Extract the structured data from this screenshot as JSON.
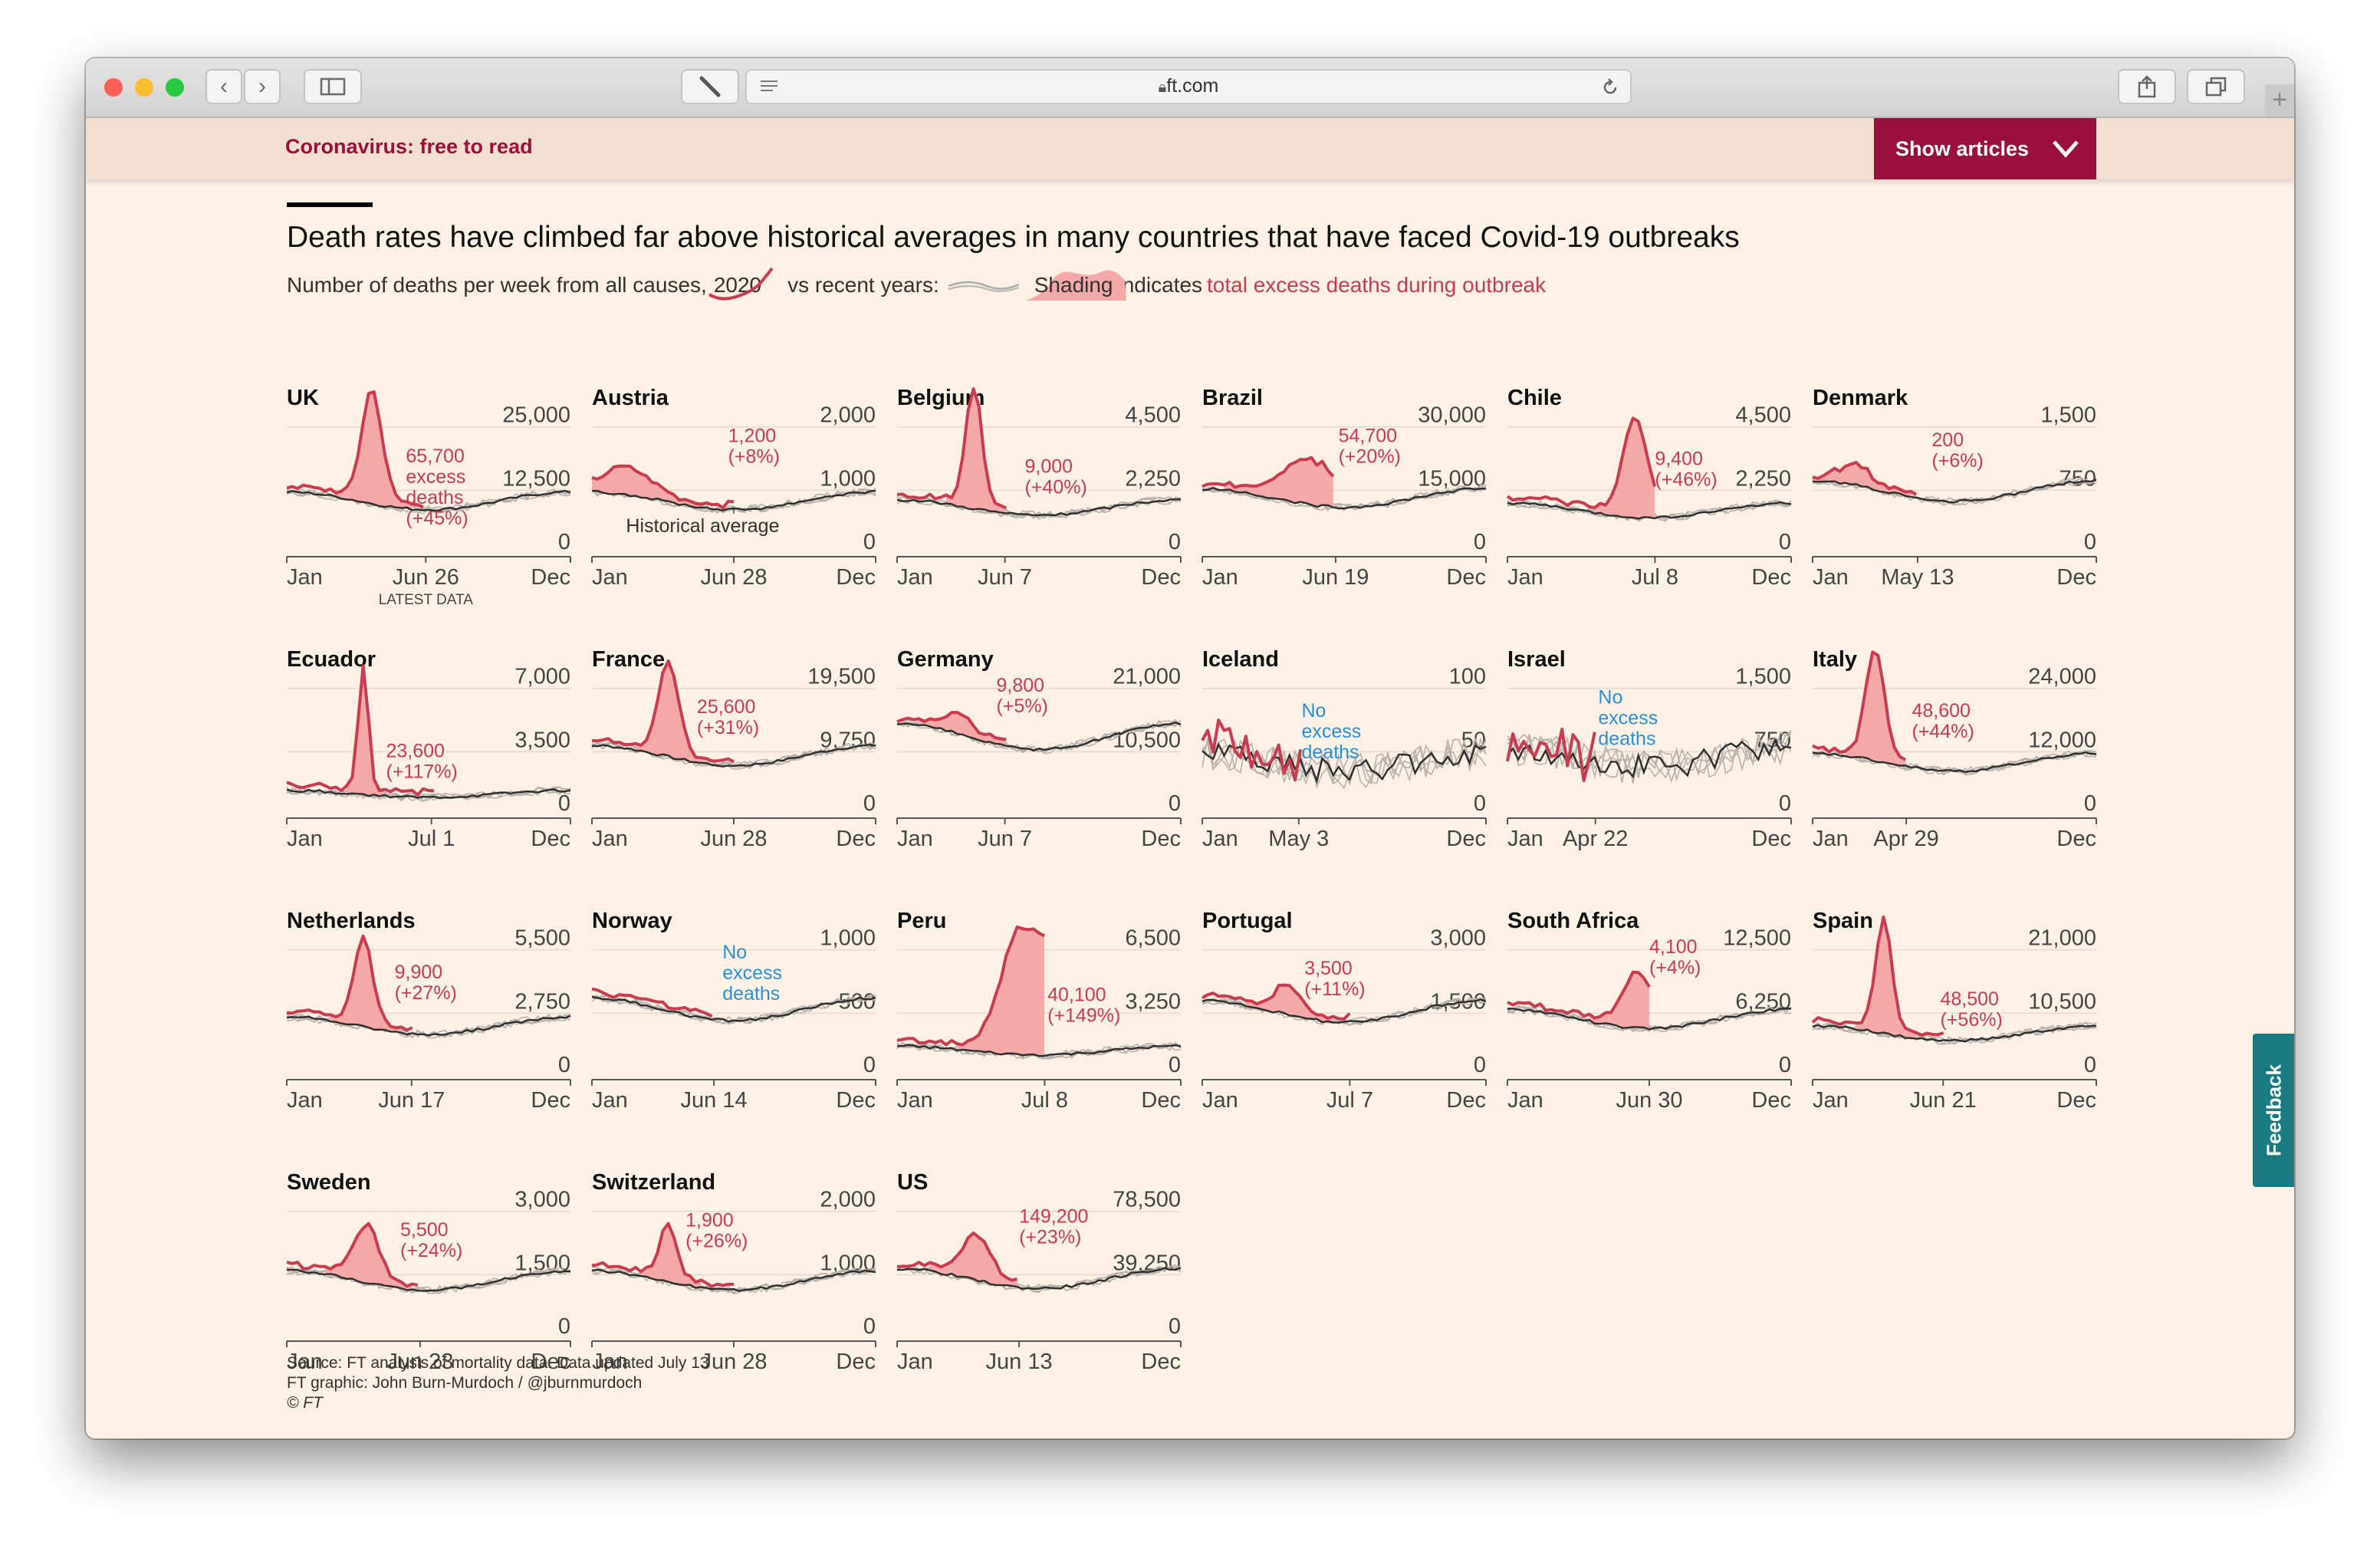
{
  "browser": {
    "url": "ft.com",
    "traffic_lights": [
      "#ff5f57",
      "#febc2e",
      "#28c840"
    ]
  },
  "banner": {
    "text": "Coronavirus: free to read",
    "button_label": "Show articles",
    "color": "#990f3d"
  },
  "header": {
    "title": "Death rates have climbed far above historical averages in many countries that have faced Covid-19 outbreaks",
    "subtitle_prefix": "Number of deaths per week from all causes,",
    "subtitle_year": "2020",
    "subtitle_vs": "vs recent years:",
    "subtitle_shading": "Shading",
    "subtitle_indicates": "indicates",
    "subtitle_excess": "total excess deaths during outbreak"
  },
  "annotations": {
    "historical_average": "Historical average",
    "latest_data": "LATEST DATA"
  },
  "chart_data": [
    {
      "type": "line",
      "title": "UK",
      "yticks": [
        "25,000",
        "12,500",
        "0"
      ],
      "xticks": [
        "Jan",
        "Jun 26",
        "Dec"
      ],
      "end": 0.49,
      "peak": 0.3,
      "spread": 0.05,
      "amp": 0.82,
      "base": 0.55,
      "anno": [
        "65,700",
        "excess",
        "deaths",
        "(+45%)"
      ],
      "anno_color": "#c93b4f",
      "annotation_pos": [
        0.42,
        0.2
      ],
      "latest": true
    },
    {
      "type": "line",
      "title": "Austria",
      "yticks": [
        "2,000",
        "1,000",
        "0"
      ],
      "xticks": [
        "Jan",
        "Jun 28",
        "Dec"
      ],
      "end": 0.5,
      "peak": 0.12,
      "spread": 0.1,
      "amp": 0.18,
      "base": 0.55,
      "anno": [
        "1,200",
        "(+8%)"
      ],
      "anno_color": "#c93b4f",
      "annotation_pos": [
        0.48,
        0.05
      ],
      "hist_label": true
    },
    {
      "type": "line",
      "title": "Belgium",
      "yticks": [
        "4,500",
        "2,250",
        "0"
      ],
      "xticks": [
        "Jan",
        "Jun 7",
        "Dec"
      ],
      "end": 0.38,
      "peak": 0.27,
      "spread": 0.04,
      "amp": 0.88,
      "base": 0.48,
      "anno": [
        "9,000",
        "(+40%)"
      ],
      "anno_color": "#c93b4f",
      "annotation_pos": [
        0.45,
        0.28
      ]
    },
    {
      "type": "line",
      "title": "Brazil",
      "yticks": [
        "30,000",
        "15,000",
        "0"
      ],
      "xticks": [
        "Jan",
        "Jun 19",
        "Dec"
      ],
      "end": 0.47,
      "peak": 0.38,
      "spread": 0.13,
      "amp": 0.3,
      "base": 0.58,
      "anno": [
        "54,700",
        "(+20%)"
      ],
      "anno_color": "#c93b4f",
      "annotation_pos": [
        0.48,
        0.05
      ],
      "no_hist_early": true
    },
    {
      "type": "line",
      "title": "Chile",
      "yticks": [
        "4,500",
        "2,250",
        "0"
      ],
      "xticks": [
        "Jan",
        "Jul 8",
        "Dec"
      ],
      "end": 0.52,
      "peak": 0.45,
      "spread": 0.06,
      "amp": 0.7,
      "base": 0.45,
      "anno": [
        "9,400",
        "(+46%)"
      ],
      "anno_color": "#c93b4f",
      "annotation_pos": [
        0.52,
        0.22
      ]
    },
    {
      "type": "line",
      "title": "Denmark",
      "yticks": [
        "1,500",
        "750",
        "0"
      ],
      "xticks": [
        "Jan",
        "May 13",
        "Dec"
      ],
      "end": 0.37,
      "peak": 0.15,
      "spread": 0.07,
      "amp": 0.12,
      "base": 0.65,
      "anno": [
        "200",
        "(+6%)"
      ],
      "anno_color": "#c93b4f",
      "annotation_pos": [
        0.42,
        0.08
      ]
    },
    {
      "type": "line",
      "title": "Ecuador",
      "yticks": [
        "7,000",
        "3,500",
        "0"
      ],
      "xticks": [
        "Jan",
        "Jul 1",
        "Dec"
      ],
      "end": 0.51,
      "peak": 0.27,
      "spread": 0.025,
      "amp": 0.92,
      "base": 0.22,
      "anno": [
        "23,600",
        "(+117%)"
      ],
      "anno_color": "#c93b4f",
      "annotation_pos": [
        0.35,
        0.45
      ]
    },
    {
      "type": "line",
      "title": "France",
      "yticks": [
        "19,500",
        "9,750",
        "0"
      ],
      "xticks": [
        "Jan",
        "Jun 28",
        "Dec"
      ],
      "end": 0.5,
      "peak": 0.27,
      "spread": 0.05,
      "amp": 0.65,
      "base": 0.62,
      "anno": [
        "25,600",
        "(+31%)"
      ],
      "anno_color": "#c93b4f",
      "annotation_pos": [
        0.37,
        0.12
      ]
    },
    {
      "type": "line",
      "title": "Germany",
      "yticks": [
        "21,000",
        "10,500",
        "0"
      ],
      "xticks": [
        "Jan",
        "Jun 7",
        "Dec"
      ],
      "end": 0.38,
      "peak": 0.22,
      "spread": 0.06,
      "amp": 0.12,
      "base": 0.82,
      "anno": [
        "9,800",
        "(+5%)"
      ],
      "anno_color": "#c93b4f",
      "annotation_pos": [
        0.35,
        -0.04
      ]
    },
    {
      "type": "line",
      "title": "Iceland",
      "yticks": [
        "100",
        "50",
        "0"
      ],
      "xticks": [
        "Jan",
        "May 3",
        "Dec"
      ],
      "end": 0.34,
      "peak": 0.2,
      "spread": 0.05,
      "amp": 0.0,
      "base": 0.55,
      "noisy": true,
      "anno": [
        "No",
        "excess",
        "deaths"
      ],
      "anno_color": "#2e8fcf",
      "annotation_pos": [
        0.35,
        0.15
      ]
    },
    {
      "type": "line",
      "title": "Israel",
      "yticks": [
        "1,500",
        "750",
        "0"
      ],
      "xticks": [
        "Jan",
        "Apr 22",
        "Dec"
      ],
      "end": 0.31,
      "peak": 0.2,
      "spread": 0.05,
      "amp": 0.0,
      "base": 0.6,
      "noisy": true,
      "anno": [
        "No",
        "excess",
        "deaths"
      ],
      "anno_color": "#2e8fcf",
      "annotation_pos": [
        0.32,
        0.05
      ]
    },
    {
      "type": "line",
      "title": "Italy",
      "yticks": [
        "24,000",
        "12,000",
        "0"
      ],
      "xticks": [
        "Jan",
        "Apr 29",
        "Dec"
      ],
      "end": 0.33,
      "peak": 0.22,
      "spread": 0.045,
      "amp": 0.82,
      "base": 0.55,
      "anno": [
        "48,600",
        "(+44%)"
      ],
      "anno_color": "#c93b4f",
      "annotation_pos": [
        0.35,
        0.15
      ]
    },
    {
      "type": "line",
      "title": "Netherlands",
      "yticks": [
        "5,500",
        "2,750",
        "0"
      ],
      "xticks": [
        "Jan",
        "Jun 17",
        "Dec"
      ],
      "end": 0.44,
      "peak": 0.27,
      "spread": 0.045,
      "amp": 0.62,
      "base": 0.53,
      "anno": [
        "9,900",
        "(+27%)"
      ],
      "anno_color": "#c93b4f",
      "annotation_pos": [
        0.38,
        0.15
      ]
    },
    {
      "type": "line",
      "title": "Norway",
      "yticks": [
        "1,000",
        "500",
        "0"
      ],
      "xticks": [
        "Jan",
        "Jun 14",
        "Dec"
      ],
      "end": 0.43,
      "peak": 0.2,
      "spread": 0.05,
      "amp": 0.0,
      "base": 0.7,
      "anno": [
        "No",
        "excess",
        "deaths"
      ],
      "anno_color": "#2e8fcf",
      "annotation_pos": [
        0.46,
        0.0
      ]
    },
    {
      "type": "line",
      "title": "Peru",
      "yticks": [
        "6,500",
        "3,250",
        "0"
      ],
      "xticks": [
        "Jan",
        "Jul 8",
        "Dec"
      ],
      "end": 0.52,
      "peak": 0.44,
      "spread": 0.1,
      "amp": 0.92,
      "base": 0.27,
      "plateau": true,
      "anno": [
        "40,100",
        "(+149%)"
      ],
      "anno_color": "#c93b4f",
      "annotation_pos": [
        0.53,
        0.32
      ]
    },
    {
      "type": "line",
      "title": "Portugal",
      "yticks": [
        "3,000",
        "1,500",
        "0"
      ],
      "xticks": [
        "Jan",
        "Jul 7",
        "Dec"
      ],
      "end": 0.52,
      "peak": 0.3,
      "spread": 0.06,
      "amp": 0.18,
      "base": 0.68,
      "anno": [
        "3,500",
        "(+11%)"
      ],
      "anno_color": "#c93b4f",
      "annotation_pos": [
        0.36,
        0.12
      ]
    },
    {
      "type": "line",
      "title": "South Africa",
      "yticks": [
        "12,500",
        "6,250",
        "0"
      ],
      "xticks": [
        "Jan",
        "Jun 30",
        "Dec"
      ],
      "end": 0.5,
      "peak": 0.46,
      "spread": 0.07,
      "amp": 0.38,
      "base": 0.6,
      "anno": [
        "4,100",
        "(+4%)"
      ],
      "anno_color": "#c93b4f",
      "annotation_pos": [
        0.5,
        -0.04
      ]
    },
    {
      "type": "line",
      "title": "Spain",
      "yticks": [
        "21,000",
        "10,500",
        "0"
      ],
      "xticks": [
        "Jan",
        "Jun 21",
        "Dec"
      ],
      "end": 0.46,
      "peak": 0.25,
      "spread": 0.04,
      "amp": 0.82,
      "base": 0.45,
      "anno": [
        "48,500",
        "(+56%)"
      ],
      "anno_color": "#c93b4f",
      "annotation_pos": [
        0.45,
        0.35
      ]
    },
    {
      "type": "line",
      "title": "Sweden",
      "yticks": [
        "3,000",
        "1,500",
        "0"
      ],
      "xticks": [
        "Jan",
        "Jun 23",
        "Dec"
      ],
      "end": 0.47,
      "peak": 0.28,
      "spread": 0.06,
      "amp": 0.4,
      "base": 0.6,
      "anno": [
        "5,500",
        "(+24%)"
      ],
      "anno_color": "#c93b4f",
      "annotation_pos": [
        0.4,
        0.12
      ]
    },
    {
      "type": "line",
      "title": "Switzerland",
      "yticks": [
        "2,000",
        "1,000",
        "0"
      ],
      "xticks": [
        "Jan",
        "Jun 28",
        "Dec"
      ],
      "end": 0.5,
      "peak": 0.27,
      "spread": 0.04,
      "amp": 0.4,
      "base": 0.6,
      "anno": [
        "1,900",
        "(+26%)"
      ],
      "anno_color": "#c93b4f",
      "annotation_pos": [
        0.33,
        0.05
      ]
    },
    {
      "type": "line",
      "title": "US",
      "yticks": [
        "78,500",
        "39,250",
        "0"
      ],
      "xticks": [
        "Jan",
        "Jun 13",
        "Dec"
      ],
      "end": 0.43,
      "peak": 0.28,
      "spread": 0.07,
      "amp": 0.3,
      "base": 0.62,
      "anno": [
        "149,200",
        "(+23%)"
      ],
      "anno_color": "#c93b4f",
      "annotation_pos": [
        0.43,
        0.02
      ]
    }
  ],
  "footer": {
    "source": "Source: FT analysis of mortality data. Data updated July 13",
    "graphic": "FT graphic: John Burn-Murdoch / @jburnmurdoch",
    "copyright": "© FT"
  },
  "feedback_label": "Feedback",
  "colors": {
    "line_2020": "#c93b4f",
    "shading": "#f4a8a8",
    "background": "#fdf1e6",
    "feedback": "#197a7f",
    "no_excess": "#2e8fcf"
  }
}
